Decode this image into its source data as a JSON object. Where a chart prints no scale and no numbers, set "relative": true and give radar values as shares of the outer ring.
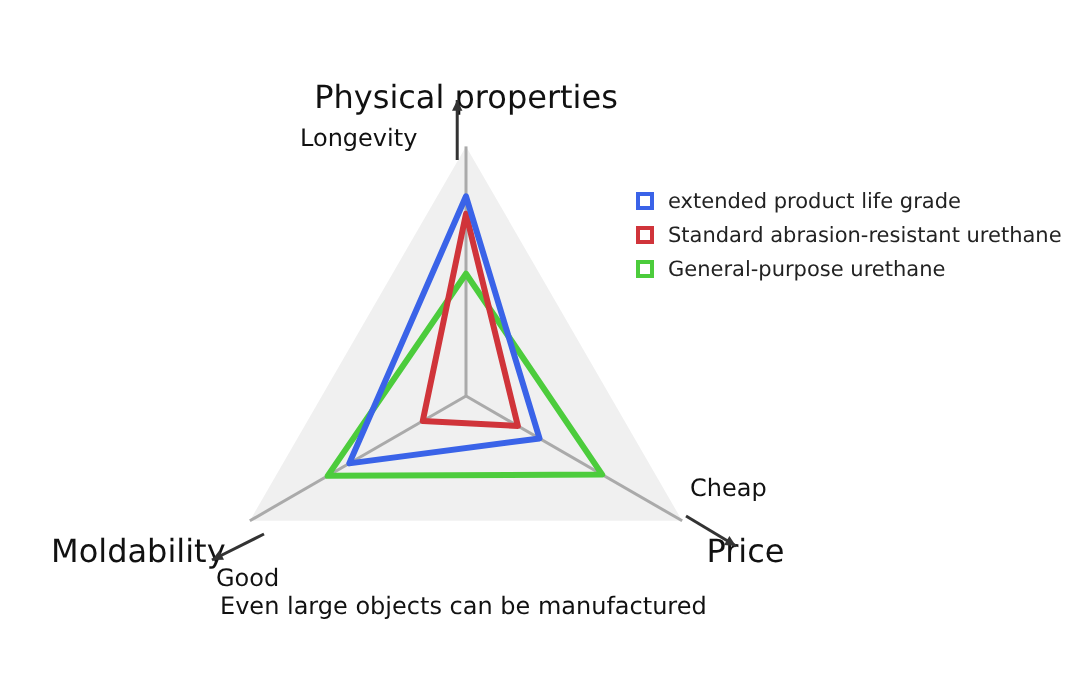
{
  "chart_data": {
    "type": "radar",
    "relative": true,
    "categories": [
      "Physical properties",
      "Price",
      "Moldability"
    ],
    "series": [
      {
        "name": "extended product life grade",
        "color": "#3a63e8",
        "values": [
          0.8,
          0.34,
          0.54
        ]
      },
      {
        "name": "Standard abrasion-resistant urethane",
        "color": "#d0343a",
        "values": [
          0.73,
          0.24,
          0.2
        ]
      },
      {
        "name": "General-purpose urethane",
        "color": "#4ccc3c",
        "values": [
          0.49,
          0.63,
          0.64
        ]
      }
    ],
    "legend": "right",
    "marker": "none",
    "line_style": "solid",
    "grid": true,
    "annotations": [
      "Longevity",
      "Cheap",
      "Good",
      "Even large objects can be manufactured"
    ]
  }
}
